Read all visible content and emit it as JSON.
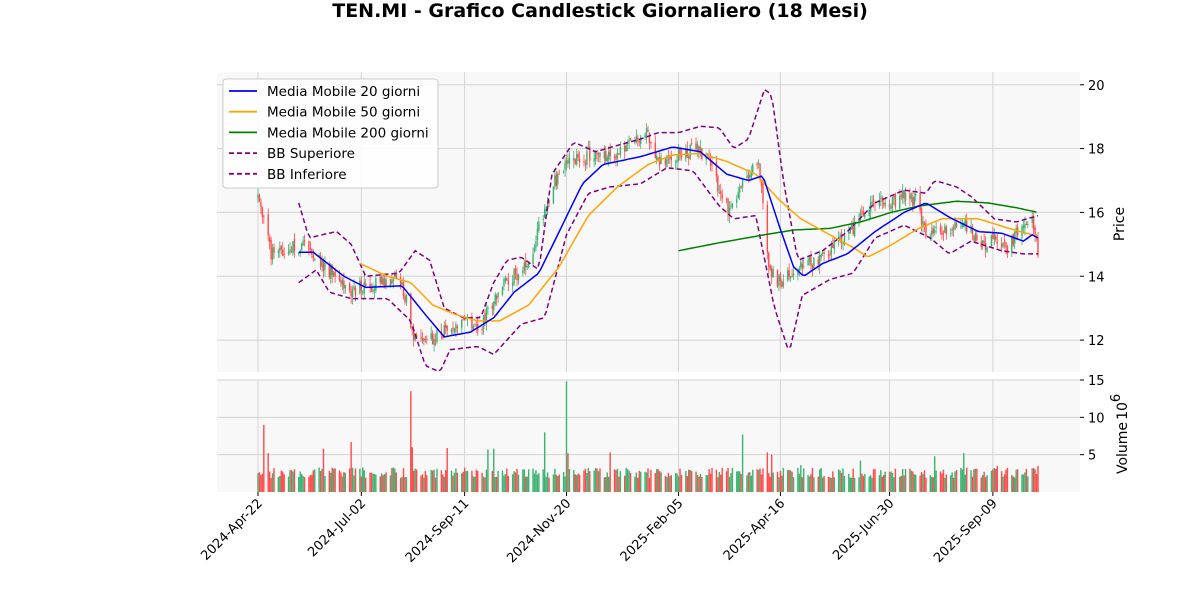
{
  "chart_data": {
    "type": "candlestick",
    "title": "TEN.MI - Grafico Candlestick Giornaliero (18 Mesi)",
    "price_panel": {
      "ylabel": "Price",
      "ylim": [
        11,
        20.4
      ],
      "yticks": [
        12,
        14,
        16,
        18,
        20
      ],
      "grid": true,
      "legend_position": "top-left",
      "series": [
        {
          "name": "Media Mobile 20 giorni",
          "color": "#0000ff",
          "style": "solid"
        },
        {
          "name": "Media Mobile 50 giorni",
          "color": "#ffa500",
          "style": "solid"
        },
        {
          "name": "Media Mobile 200 giorni",
          "color": "#008000",
          "style": "solid"
        },
        {
          "name": "BB Superiore",
          "color": "#800080",
          "style": "dashed"
        },
        {
          "name": "BB Inferiore",
          "color": "#800080",
          "style": "dashed"
        }
      ],
      "close_anchors": [
        [
          "2024-04-22",
          16.4
        ],
        [
          "2024-04-26",
          15.8
        ],
        [
          "2024-05-01",
          14.7
        ],
        [
          "2024-05-15",
          14.9
        ],
        [
          "2024-05-25",
          14.9
        ],
        [
          "2024-06-10",
          14.2
        ],
        [
          "2024-06-25",
          13.6
        ],
        [
          "2024-07-10",
          13.7
        ],
        [
          "2024-07-28",
          13.9
        ],
        [
          "2024-08-02",
          13.3
        ],
        [
          "2024-08-06",
          12.1
        ],
        [
          "2024-08-20",
          12.0
        ],
        [
          "2024-08-30",
          12.4
        ],
        [
          "2024-09-11",
          12.6
        ],
        [
          "2024-09-20",
          12.2
        ],
        [
          "2024-10-01",
          13.3
        ],
        [
          "2024-10-10",
          13.9
        ],
        [
          "2024-10-25",
          14.3
        ],
        [
          "2024-11-01",
          15.6
        ],
        [
          "2024-11-10",
          16.8
        ],
        [
          "2024-11-20",
          17.5
        ],
        [
          "2024-12-05",
          17.8
        ],
        [
          "2024-12-20",
          17.7
        ],
        [
          "2025-01-05",
          18.2
        ],
        [
          "2025-01-15",
          18.5
        ],
        [
          "2025-01-22",
          17.6
        ],
        [
          "2025-02-05",
          17.8
        ],
        [
          "2025-02-18",
          18.0
        ],
        [
          "2025-03-01",
          17.6
        ],
        [
          "2025-03-05",
          16.6
        ],
        [
          "2025-03-12",
          16.1
        ],
        [
          "2025-03-22",
          17.0
        ],
        [
          "2025-04-01",
          17.5
        ],
        [
          "2025-04-04",
          16.5
        ],
        [
          "2025-04-08",
          14.2
        ],
        [
          "2025-04-15",
          13.8
        ],
        [
          "2025-04-25",
          14.1
        ],
        [
          "2025-05-10",
          14.5
        ],
        [
          "2025-05-20",
          14.8
        ],
        [
          "2025-05-30",
          15.2
        ],
        [
          "2025-06-10",
          15.8
        ],
        [
          "2025-06-20",
          16.3
        ],
        [
          "2025-06-30",
          16.2
        ],
        [
          "2025-07-10",
          16.5
        ],
        [
          "2025-07-18",
          16.4
        ],
        [
          "2025-07-25",
          15.3
        ],
        [
          "2025-08-05",
          15.4
        ],
        [
          "2025-08-20",
          15.7
        ],
        [
          "2025-09-01",
          15.0
        ],
        [
          "2025-09-09",
          15.1
        ],
        [
          "2025-09-20",
          14.9
        ],
        [
          "2025-09-30",
          15.8
        ],
        [
          "2025-10-06",
          15.9
        ],
        [
          "2025-10-10",
          14.7
        ]
      ],
      "ma20_anchors": [
        [
          "2024-05-20",
          14.75
        ],
        [
          "2024-05-30",
          14.75
        ],
        [
          "2024-06-20",
          14.0
        ],
        [
          "2024-07-05",
          13.65
        ],
        [
          "2024-07-30",
          13.7
        ],
        [
          "2024-08-15",
          12.8
        ],
        [
          "2024-08-28",
          12.1
        ],
        [
          "2024-09-15",
          12.25
        ],
        [
          "2024-10-01",
          12.7
        ],
        [
          "2024-10-15",
          13.5
        ],
        [
          "2024-11-01",
          14.1
        ],
        [
          "2024-11-15",
          15.4
        ],
        [
          "2024-12-01",
          16.9
        ],
        [
          "2024-12-15",
          17.5
        ],
        [
          "2025-01-10",
          17.75
        ],
        [
          "2025-02-01",
          18.05
        ],
        [
          "2025-02-20",
          17.9
        ],
        [
          "2025-03-10",
          17.2
        ],
        [
          "2025-03-25",
          17.0
        ],
        [
          "2025-04-04",
          17.15
        ],
        [
          "2025-04-15",
          15.6
        ],
        [
          "2025-04-25",
          14.3
        ],
        [
          "2025-05-02",
          14.0
        ],
        [
          "2025-05-15",
          14.4
        ],
        [
          "2025-06-01",
          14.7
        ],
        [
          "2025-06-20",
          15.4
        ],
        [
          "2025-07-10",
          16.0
        ],
        [
          "2025-07-25",
          16.3
        ],
        [
          "2025-08-10",
          15.85
        ],
        [
          "2025-08-30",
          15.4
        ],
        [
          "2025-09-15",
          15.35
        ],
        [
          "2025-09-30",
          15.1
        ],
        [
          "2025-10-06",
          15.3
        ],
        [
          "2025-10-10",
          15.2
        ]
      ],
      "ma50_anchors": [
        [
          "2024-07-01",
          14.4
        ],
        [
          "2024-07-20",
          14.0
        ],
        [
          "2024-08-05",
          13.8
        ],
        [
          "2024-08-20",
          13.1
        ],
        [
          "2024-09-05",
          12.8
        ],
        [
          "2024-09-20",
          12.6
        ],
        [
          "2024-10-05",
          12.6
        ],
        [
          "2024-10-25",
          13.1
        ],
        [
          "2024-11-15",
          14.3
        ],
        [
          "2024-12-05",
          15.9
        ],
        [
          "2024-12-25",
          16.8
        ],
        [
          "2025-01-15",
          17.5
        ],
        [
          "2025-02-01",
          17.8
        ],
        [
          "2025-02-20",
          17.85
        ],
        [
          "2025-03-10",
          17.6
        ],
        [
          "2025-03-30",
          17.2
        ],
        [
          "2025-04-15",
          16.4
        ],
        [
          "2025-04-30",
          15.8
        ],
        [
          "2025-05-20",
          15.3
        ],
        [
          "2025-06-05",
          14.9
        ],
        [
          "2025-06-15",
          14.6
        ],
        [
          "2025-06-30",
          14.95
        ],
        [
          "2025-07-20",
          15.5
        ],
        [
          "2025-08-05",
          15.8
        ],
        [
          "2025-08-30",
          15.8
        ],
        [
          "2025-09-20",
          15.5
        ],
        [
          "2025-10-10",
          15.25
        ]
      ],
      "ma200_anchors": [
        [
          "2025-02-05",
          14.8
        ],
        [
          "2025-03-05",
          15.05
        ],
        [
          "2025-04-05",
          15.3
        ],
        [
          "2025-04-25",
          15.45
        ],
        [
          "2025-05-20",
          15.5
        ],
        [
          "2025-06-10",
          15.7
        ],
        [
          "2025-07-01",
          16.0
        ],
        [
          "2025-07-20",
          16.2
        ],
        [
          "2025-08-15",
          16.35
        ],
        [
          "2025-09-05",
          16.3
        ],
        [
          "2025-09-25",
          16.15
        ],
        [
          "2025-10-10",
          16.0
        ]
      ],
      "bb_upper_anchors": [
        [
          "2024-05-20",
          16.3
        ],
        [
          "2024-05-27",
          15.2
        ],
        [
          "2024-06-05",
          15.3
        ],
        [
          "2024-06-15",
          15.4
        ],
        [
          "2024-06-25",
          15.0
        ],
        [
          "2024-07-05",
          14.0
        ],
        [
          "2024-07-28",
          14.1
        ],
        [
          "2024-08-08",
          14.8
        ],
        [
          "2024-08-18",
          14.5
        ],
        [
          "2024-08-28",
          13.0
        ],
        [
          "2024-09-10",
          12.7
        ],
        [
          "2024-09-22",
          12.7
        ],
        [
          "2024-10-01",
          13.8
        ],
        [
          "2024-10-10",
          14.5
        ],
        [
          "2024-10-20",
          14.6
        ],
        [
          "2024-11-01",
          14.2
        ],
        [
          "2024-11-10",
          17.2
        ],
        [
          "2024-11-25",
          18.2
        ],
        [
          "2024-12-10",
          17.9
        ],
        [
          "2024-12-25",
          18.1
        ],
        [
          "2025-01-10",
          18.3
        ],
        [
          "2025-01-22",
          18.5
        ],
        [
          "2025-02-05",
          18.5
        ],
        [
          "2025-02-20",
          18.7
        ],
        [
          "2025-03-05",
          18.65
        ],
        [
          "2025-03-15",
          18.0
        ],
        [
          "2025-03-25",
          18.3
        ],
        [
          "2025-04-05",
          19.85
        ],
        [
          "2025-04-10",
          19.7
        ],
        [
          "2025-04-18",
          17.0
        ],
        [
          "2025-04-28",
          14.5
        ],
        [
          "2025-05-15",
          14.8
        ],
        [
          "2025-06-01",
          15.4
        ],
        [
          "2025-06-20",
          16.3
        ],
        [
          "2025-07-10",
          16.7
        ],
        [
          "2025-07-25",
          16.6
        ],
        [
          "2025-07-31",
          17.0
        ],
        [
          "2025-08-15",
          16.8
        ],
        [
          "2025-08-25",
          16.5
        ],
        [
          "2025-09-10",
          15.8
        ],
        [
          "2025-09-25",
          15.7
        ],
        [
          "2025-10-10",
          15.9
        ]
      ],
      "bb_lower_anchors": [
        [
          "2024-05-20",
          13.8
        ],
        [
          "2024-06-01",
          14.2
        ],
        [
          "2024-06-10",
          13.5
        ],
        [
          "2024-06-25",
          13.3
        ],
        [
          "2024-07-20",
          13.3
        ],
        [
          "2024-08-05",
          12.6
        ],
        [
          "2024-08-15",
          11.2
        ],
        [
          "2024-08-25",
          11.0
        ],
        [
          "2024-09-01",
          11.7
        ],
        [
          "2024-09-20",
          11.8
        ],
        [
          "2024-10-01",
          11.55
        ],
        [
          "2024-10-20",
          12.5
        ],
        [
          "2024-11-05",
          12.7
        ],
        [
          "2024-11-20",
          15.3
        ],
        [
          "2024-12-05",
          16.6
        ],
        [
          "2024-12-20",
          16.8
        ],
        [
          "2025-01-10",
          16.9
        ],
        [
          "2025-01-28",
          17.4
        ],
        [
          "2025-02-15",
          17.3
        ],
        [
          "2025-03-05",
          16.2
        ],
        [
          "2025-03-15",
          15.8
        ],
        [
          "2025-03-30",
          15.9
        ],
        [
          "2025-04-12",
          13.0
        ],
        [
          "2025-04-22",
          11.6
        ],
        [
          "2025-05-01",
          13.4
        ],
        [
          "2025-05-20",
          13.9
        ],
        [
          "2025-06-05",
          14.1
        ],
        [
          "2025-06-20",
          15.2
        ],
        [
          "2025-07-10",
          15.6
        ],
        [
          "2025-07-28",
          15.2
        ],
        [
          "2025-08-10",
          14.7
        ],
        [
          "2025-08-25",
          15.1
        ],
        [
          "2025-09-15",
          14.8
        ],
        [
          "2025-09-30",
          14.7
        ],
        [
          "2025-10-10",
          14.7
        ]
      ]
    },
    "volume_panel": {
      "ylabel": "Volume",
      "ylabel_exponent": "6",
      "ylim": [
        0,
        15
      ],
      "yticks": [
        5,
        10,
        15
      ],
      "grid": true,
      "base_millions": 2.3,
      "spikes_millions": [
        [
          "2024-04-26",
          9.0
        ],
        [
          "2024-04-29",
          5.2
        ],
        [
          "2024-06-06",
          5.8
        ],
        [
          "2024-06-25",
          6.7
        ],
        [
          "2024-08-05",
          13.5
        ],
        [
          "2024-08-06",
          6.0
        ],
        [
          "2024-08-30",
          5.9
        ],
        [
          "2024-09-27",
          5.7
        ],
        [
          "2024-10-01",
          5.8
        ],
        [
          "2024-11-05",
          8.0
        ],
        [
          "2024-11-20",
          14.8
        ],
        [
          "2024-11-21",
          5.2
        ],
        [
          "2024-12-20",
          5.3
        ],
        [
          "2025-03-01",
          8.3
        ],
        [
          "2025-03-21",
          7.7
        ],
        [
          "2025-04-07",
          5.3
        ],
        [
          "2025-04-10",
          5.0
        ],
        [
          "2025-04-30",
          3.6
        ],
        [
          "2025-05-25",
          5.6
        ],
        [
          "2025-06-01",
          4.8
        ],
        [
          "2025-06-10",
          4.2
        ],
        [
          "2025-07-31",
          4.8
        ],
        [
          "2025-08-20",
          5.2
        ],
        [
          "2025-09-12",
          3.5
        ],
        [
          "2025-10-10",
          3.5
        ]
      ]
    },
    "x_axis": {
      "start": "2024-04-22",
      "end": "2025-10-10",
      "tick_labels": [
        "2024-Apr-22",
        "2024-Jul-02",
        "2024-Sep-11",
        "2024-Nov-20",
        "2025-Feb-05",
        "2025-Apr-16",
        "2025-Jun-30",
        "2025-Sep-09"
      ],
      "tick_dates": [
        "2024-04-22",
        "2024-07-02",
        "2024-09-11",
        "2024-11-20",
        "2025-02-05",
        "2025-04-16",
        "2025-06-30",
        "2025-09-09"
      ]
    },
    "colors": {
      "up": "#3cb371",
      "down": "#ff4b4b",
      "panel_bg": "#f8f8f8",
      "grid": "#d3d3d3"
    }
  }
}
